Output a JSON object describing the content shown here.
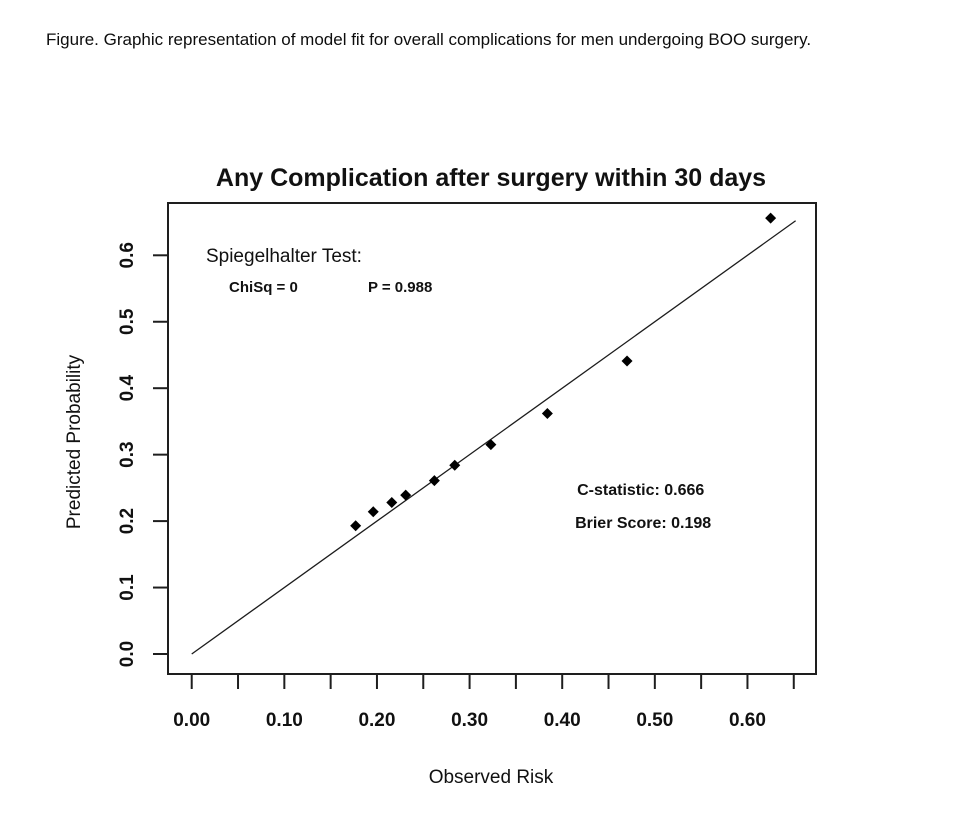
{
  "caption": "Figure. Graphic representation of model fit for overall complications for men undergoing BOO surgery.",
  "chart_data": {
    "type": "scatter",
    "title": "Any Complication after surgery within 30 days",
    "xlabel": "Observed Risk",
    "ylabel": "Predicted Probability",
    "xlim": [
      -0.0256,
      0.674
    ],
    "ylim": [
      -0.0301,
      0.6787
    ],
    "x_minor_ticks": [
      0.0,
      0.05,
      0.1,
      0.15,
      0.2,
      0.25,
      0.3,
      0.35,
      0.4,
      0.45,
      0.5,
      0.55,
      0.6,
      0.65
    ],
    "x_labeled_ticks": [
      {
        "value": 0.0,
        "label": "0.00"
      },
      {
        "value": 0.1,
        "label": "0.10"
      },
      {
        "value": 0.2,
        "label": "0.20"
      },
      {
        "value": 0.3,
        "label": "0.30"
      },
      {
        "value": 0.4,
        "label": "0.40"
      },
      {
        "value": 0.5,
        "label": "0.50"
      },
      {
        "value": 0.6,
        "label": "0.60"
      }
    ],
    "y_labeled_ticks": [
      {
        "value": 0.0,
        "label": "0.0"
      },
      {
        "value": 0.1,
        "label": "0.1"
      },
      {
        "value": 0.2,
        "label": "0.2"
      },
      {
        "value": 0.3,
        "label": "0.3"
      },
      {
        "value": 0.4,
        "label": "0.4"
      },
      {
        "value": 0.5,
        "label": "0.5"
      },
      {
        "value": 0.6,
        "label": "0.6"
      }
    ],
    "points": [
      {
        "x": 0.177,
        "y": 0.193
      },
      {
        "x": 0.196,
        "y": 0.214
      },
      {
        "x": 0.216,
        "y": 0.228
      },
      {
        "x": 0.231,
        "y": 0.239
      },
      {
        "x": 0.262,
        "y": 0.261
      },
      {
        "x": 0.284,
        "y": 0.284
      },
      {
        "x": 0.323,
        "y": 0.315
      },
      {
        "x": 0.384,
        "y": 0.362
      },
      {
        "x": 0.47,
        "y": 0.441
      },
      {
        "x": 0.625,
        "y": 0.656
      }
    ],
    "identity_line": {
      "from": {
        "x": 0.0,
        "y": 0.0
      },
      "to": {
        "x": 0.652,
        "y": 0.652
      }
    },
    "annotations": [
      {
        "name": "spiegelhalter-test-label",
        "text": "Spiegelhalter Test:",
        "x": 0.0154,
        "y": 0.59,
        "kind": "heading"
      },
      {
        "name": "chisq-value",
        "text": "ChiSq = 0",
        "x": 0.0403,
        "y": 0.5447,
        "kind": "stat"
      },
      {
        "name": "p-value",
        "text": "P =  0.988",
        "x": 0.1903,
        "y": 0.5447,
        "kind": "stat"
      },
      {
        "name": "c-statistic-value",
        "text": "C-statistic: 0.666",
        "x": 0.4161,
        "y": 0.2393,
        "kind": "metric"
      },
      {
        "name": "brier-score-value",
        "text": "Brier Score: 0.198",
        "x": 0.4139,
        "y": 0.1896,
        "kind": "metric"
      }
    ],
    "marker": "diamond",
    "legend": "none",
    "grid": false,
    "colors": {
      "background": "#ffffff",
      "points": "#000000",
      "line": "#1c1c1c",
      "frame": "#1e1e1e",
      "text": "#111111"
    }
  }
}
